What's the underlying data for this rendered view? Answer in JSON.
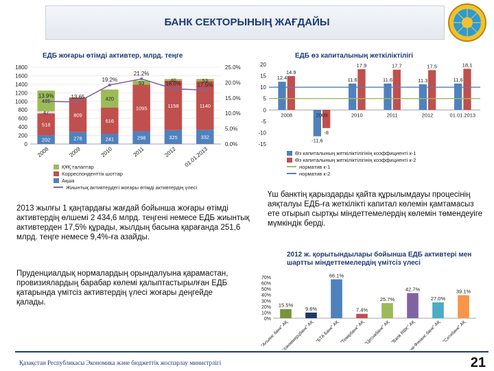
{
  "header": {
    "title": "БАНК СЕКТОРЫНЫҢ ЖАҒДАЙЫ"
  },
  "text": {
    "para_left": "2013 жылғы 1 қаңтардағы жағдай бойынша жоғары өтімді активтердің өлшемі 2 434,6 млрд. теңгені немесе ЕДБ жиынтық активтерден 17,5% құрады, жылдың басына қарағанда 251,6 млрд. теңге немесе 9,4%-ға азайды.",
    "para_left2": "Пруденциалдық нормалардың орындалуына қарамастан, провизиялардың барабар көлемі қалыптастырылған ЕДБ қатарында үмітсіз активтердің үлесі жоғары деңгейде қалады.",
    "para_right": "Үш банктің қарыздарды қайта құрылымдауы процесінің аяқталуы ЕДБ-ға жеткілікті капитал көлемін қамтамасыз ете отырып сыртқы міндеттемелердің көлемін төмендеуіге мүмкіндік берді."
  },
  "footer": {
    "org": "Қазақстан Республикасы Экономика және бюджеттік жоспарлау министрлігі",
    "page": "21"
  },
  "chart_data": [
    {
      "type": "bar",
      "title": "ЕДБ жоғары өтімді активтер, млрд. теңге",
      "categories": [
        "2008",
        "2009",
        "2010",
        "2011",
        "2012",
        "01.01.2013"
      ],
      "stacked": true,
      "series": [
        {
          "name": "Ақша",
          "color": "#4f81bd",
          "values": [
            202,
            278,
            241,
            298,
            325,
            332
          ]
        },
        {
          "name": "Корреспонденттік шоттар",
          "color": "#c0504d",
          "values": [
            518,
            809,
            616,
            1095,
            1158,
            1140
          ]
        },
        {
          "name": "",
          "color": "#f2dcdb",
          "values": [
            47,
            null,
            null,
            null,
            null,
            null
          ]
        },
        {
          "name": "ҚҰҚ талаптар",
          "color": "#9bbb59",
          "values": [
            485,
            11,
            420,
            93,
            40,
            53
          ]
        }
      ],
      "ratio_series": {
        "name": "Жиынтық активтердегі жоғары өтімді активтердің үлесі",
        "color": "#8064a2",
        "values": [
          13.9,
          13.65,
          19.2,
          21.2,
          18.0,
          17.5
        ],
        "labels": [
          "13.9%",
          "13.65",
          "19.2%",
          "21.2%",
          "18.0%",
          "17.5%"
        ]
      },
      "y_ticks": [
        "1800",
        "1600",
        "1400",
        "1200",
        "1000",
        "800",
        "600",
        "400",
        "200",
        "0"
      ],
      "y2_ticks": [
        "25.0%",
        "20.0%",
        "15.0%",
        "10.0%",
        "5.0%",
        "0.0%"
      ],
      "ylim": [
        0,
        1800
      ],
      "y2lim": [
        0,
        25
      ]
    },
    {
      "type": "bar",
      "title": "ЕДБ өз капиталының жеткіліктілігі",
      "categories": [
        "2008",
        "2009",
        "2010",
        "2011",
        "2012",
        "01.01.2013"
      ],
      "series": [
        {
          "name": "Өз капиталының жеткіліктілігінің коэффициенті к-1",
          "color": "#4f81bd",
          "values": [
            12.4,
            -11.6,
            11.6,
            11.6,
            11.3,
            11.6
          ],
          "labels": [
            "12.4",
            "-11,6",
            "11.6",
            "11.6",
            "11.3",
            "11,6"
          ]
        },
        {
          "name": "Өз капиталының жеткіліктілігінің коэффициенті к-2",
          "color": "#c0504d",
          "values": [
            14.9,
            -8.0,
            17.9,
            17.7,
            17.5,
            18.1
          ],
          "labels": [
            "14.9",
            "-8",
            "17.9",
            "17.7",
            "17.5",
            "18,1"
          ]
        }
      ],
      "lines": [
        {
          "name": "норматив к-1",
          "color": "#9bbb59",
          "value": 5
        },
        {
          "name": "норматив к-2",
          "color": "#4f81bd",
          "value": 10
        }
      ],
      "y_ticks": [
        "20",
        "15",
        "10",
        "5",
        "0",
        "-5",
        "-10",
        "-15"
      ],
      "ylim": [
        -15,
        20
      ]
    },
    {
      "type": "bar",
      "title": "2012 ж. қорытындылары бойынша ЕДБ активтері мен шартты міндеттемелердің үмітсіз үлесі",
      "categories": [
        "\"Альянс банк\" АҚ",
        "\"Казкоммерцбанк\" АҚ",
        "\"БТА Банк\" АҚ",
        "\"Темірбанк\" АҚ",
        "\"Цеснабанк\" АҚ",
        "\"Bank RBK\" АҚ",
        "\"Астана-Финанс банк\" АҚ",
        "\"Ситибанк\" АҚ"
      ],
      "values": [
        15.5,
        9.6,
        66.1,
        7.4,
        25.7,
        42.7,
        27.0,
        39.1
      ],
      "labels": [
        "15.5%",
        "9.6%",
        "66.1%",
        "7.4%",
        "25.7%",
        "42.7%",
        "27.0%",
        "39.1%"
      ],
      "colors": [
        "#77933c",
        "#1f3864",
        "#4f81bd",
        "#c0504d",
        "#9bbb59",
        "#8064a2",
        "#4bacc6",
        "#f79646"
      ],
      "y_ticks": [
        "70%",
        "60%",
        "50%",
        "40%",
        "30%",
        "20%",
        "10%",
        "0%"
      ],
      "ylim": [
        0,
        70
      ]
    }
  ]
}
